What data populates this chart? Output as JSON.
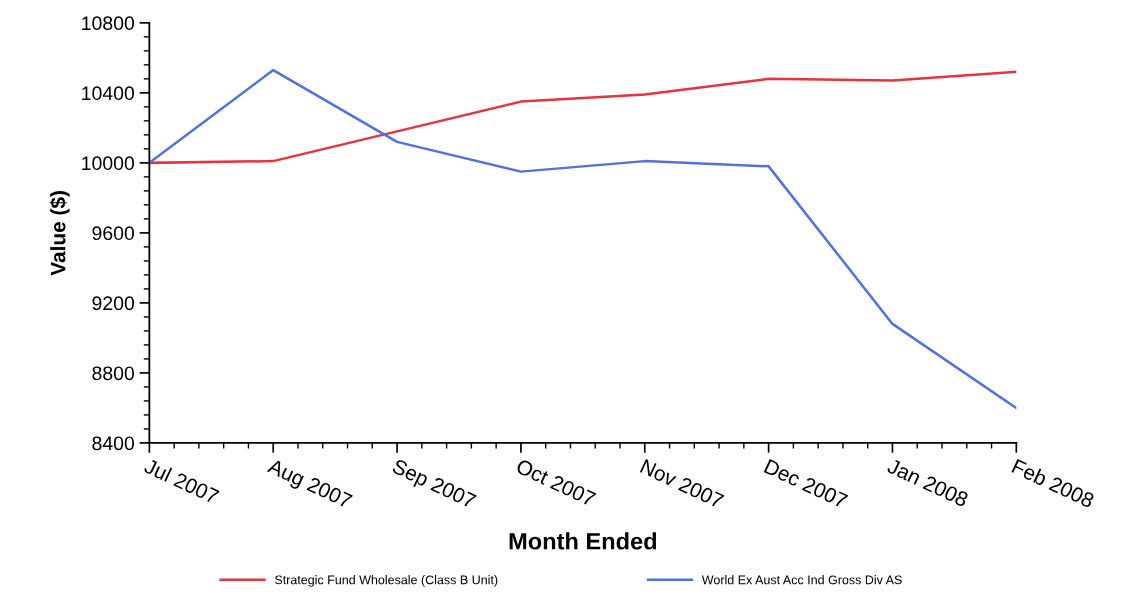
{
  "chart_data": {
    "type": "line",
    "xlabel": "Month Ended",
    "ylabel": "Value ($)",
    "categories": [
      "Jul 2007",
      "Aug 2007",
      "Sep 2007",
      "Oct 2007",
      "Nov 2007",
      "Dec 2007",
      "Jan 2008",
      "Feb 2008"
    ],
    "series": [
      {
        "name": "Strategic Fund Wholesale (Class B Unit)",
        "color": "#e8323c",
        "values": [
          10000,
          10010,
          10180,
          10350,
          10390,
          10480,
          10470,
          10520
        ]
      },
      {
        "name": "World Ex Aust Acc Ind Gross Div AS",
        "color": "#5470e0",
        "values": [
          10000,
          10530,
          10120,
          9950,
          10010,
          9980,
          9080,
          8600
        ]
      }
    ],
    "ylim": [
      8400,
      10800
    ],
    "yticks": [
      8400,
      8800,
      9200,
      9600,
      10000,
      10400,
      10800
    ],
    "grid": false,
    "legend": "bottom",
    "marker": "none",
    "line_style": "solid"
  }
}
